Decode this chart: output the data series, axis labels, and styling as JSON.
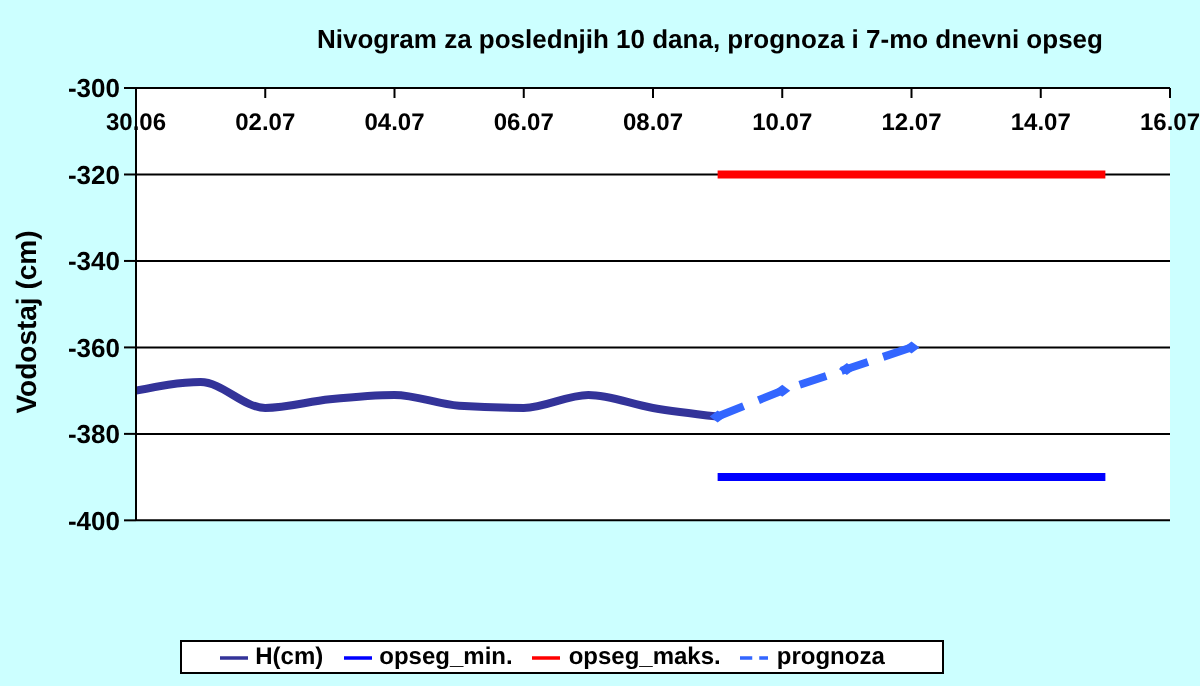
{
  "chart_data": {
    "type": "line",
    "title": "Nivogram za poslednjih 10 dana, prognoza i 7-mo dnevni opseg",
    "ylabel": "Vodostaj (cm)",
    "xlim": [
      "--06-30",
      "--07-16"
    ],
    "xticks": [
      {
        "value": "--06-30",
        "label": "30.06"
      },
      {
        "value": "--07-02",
        "label": "02.07"
      },
      {
        "value": "--07-04",
        "label": "04.07"
      },
      {
        "value": "--07-06",
        "label": "06.07"
      },
      {
        "value": "--07-08",
        "label": "08.07"
      },
      {
        "value": "--07-10",
        "label": "10.07"
      },
      {
        "value": "--07-12",
        "label": "12.07"
      },
      {
        "value": "--07-14",
        "label": "14.07"
      },
      {
        "value": "--07-16",
        "label": "16.07"
      }
    ],
    "ylim": [
      -400,
      -300
    ],
    "yticks": [
      -400,
      -380,
      -360,
      -340,
      -320,
      -300
    ],
    "series": [
      {
        "name": "H(cm)",
        "color": "#333399",
        "x": [
          "--06-30",
          "--07-01",
          "--07-02",
          "--07-03",
          "--07-04",
          "--07-05",
          "--07-06",
          "--07-07",
          "--07-08",
          "--07-09"
        ],
        "values": [
          -370,
          -368,
          -374,
          -372,
          -371,
          -373.5,
          -374,
          -371,
          -374,
          -376
        ]
      },
      {
        "name": "opseg_min.",
        "color": "#0000ff",
        "x": [
          "--07-09",
          "--07-15"
        ],
        "values": [
          -390,
          -390
        ]
      },
      {
        "name": "opseg_maks.",
        "color": "#ff0000",
        "x": [
          "--07-09",
          "--07-15"
        ],
        "values": [
          -320,
          -320
        ]
      },
      {
        "name": "prognoza",
        "color": "#3366ff",
        "x": [
          "--07-09",
          "--07-10",
          "--07-11",
          "--07-12"
        ],
        "values": [
          -376,
          -370,
          -365,
          -360
        ],
        "line_style": "dashed",
        "marker": "diamond"
      }
    ],
    "grid": "y",
    "legend": "bottom"
  }
}
